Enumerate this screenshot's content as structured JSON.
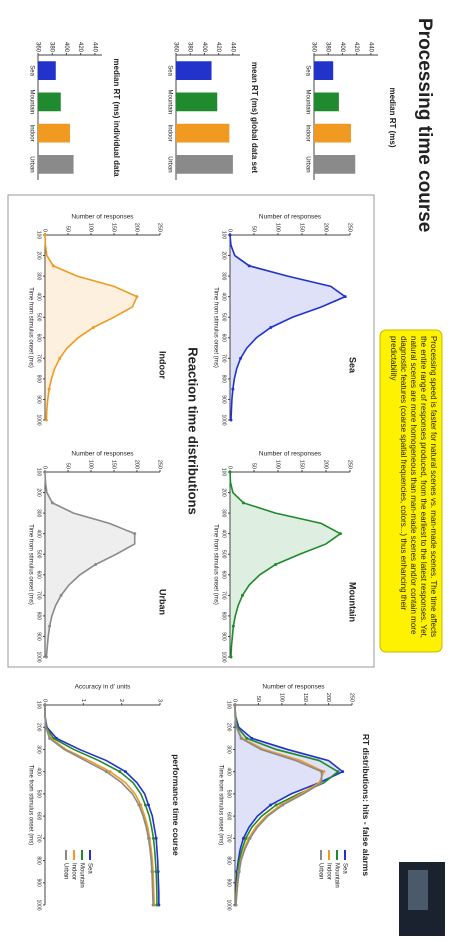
{
  "title": "Processing time course",
  "note": "Processing speed is faster for natural scenes vs. man-made scenes. The time affects the entire range of responses produced, from the earliest to the latest responses. Yet, natural scenes are more homogeneous than man-made scenes and/or contain more diagnostic features (coarse spatial frequencies, colors...) thus enhancing their predictability",
  "categories": [
    "Sea",
    "Mountain",
    "Indoor",
    "Urban"
  ],
  "colors": [
    "#2233cc",
    "#1f8a2e",
    "#f09a22",
    "#8a8a8a"
  ],
  "bar_charts": [
    {
      "title": "median RT (ms)",
      "values": [
        387,
        395,
        412,
        418
      ],
      "ylim": [
        360,
        450
      ],
      "yticks": [
        360,
        380,
        400,
        420,
        440
      ]
    },
    {
      "title": "mean RT (ms) global data set",
      "values": [
        410,
        418,
        435,
        440
      ],
      "ylim": [
        360,
        450
      ],
      "yticks": [
        360,
        380,
        400,
        420,
        440
      ]
    },
    {
      "title": "median RT (ms) individual data",
      "values": [
        385,
        392,
        405,
        410
      ],
      "ylim": [
        360,
        450
      ],
      "yticks": [
        360,
        380,
        400,
        420,
        440
      ]
    }
  ],
  "rt_section": {
    "title": "Reaction time distributions",
    "x_label": "Time from stimulus onset (ms)",
    "y_label": "Number of responses",
    "x": [
      100,
      150,
      200,
      250,
      300,
      350,
      400,
      450,
      500,
      550,
      600,
      650,
      700,
      750,
      800,
      850,
      900,
      950,
      1000
    ],
    "xlim": [
      100,
      1000
    ],
    "xticks": [
      100,
      200,
      300,
      400,
      500,
      600,
      700,
      800,
      900,
      1000
    ],
    "ylim": [
      0,
      250
    ],
    "yticks": [
      0,
      50,
      100,
      150,
      200,
      250
    ],
    "histograms": [
      {
        "name": "Sea",
        "values": [
          0,
          2,
          10,
          40,
          120,
          210,
          240,
          190,
          130,
          85,
          55,
          35,
          22,
          14,
          9,
          6,
          4,
          3,
          2
        ]
      },
      {
        "name": "Mountain",
        "values": [
          0,
          1,
          6,
          28,
          95,
          190,
          230,
          200,
          145,
          95,
          62,
          40,
          26,
          17,
          11,
          7,
          5,
          3,
          2
        ]
      },
      {
        "name": "Indoor",
        "values": [
          0,
          1,
          4,
          18,
          70,
          150,
          200,
          190,
          150,
          105,
          72,
          48,
          32,
          21,
          14,
          9,
          6,
          4,
          3
        ]
      },
      {
        "name": "Urban",
        "values": [
          0,
          1,
          4,
          16,
          62,
          140,
          195,
          195,
          155,
          110,
          76,
          52,
          35,
          23,
          15,
          10,
          7,
          5,
          3
        ]
      }
    ]
  },
  "hits_fa": {
    "title": "RT distributions: hits - false alarms",
    "y_label": "Number of responses",
    "x_label": "Time from stimulus onset (ms)",
    "ylim": [
      0,
      250
    ],
    "yticks": [
      0,
      50,
      100,
      150,
      200,
      250
    ],
    "series": [
      {
        "name": "Sea",
        "values": [
          0,
          1,
          8,
          36,
          112,
          200,
          230,
          180,
          120,
          76,
          48,
          30,
          18,
          11,
          7,
          4,
          3,
          2,
          1
        ]
      },
      {
        "name": "Mountain",
        "values": [
          0,
          1,
          5,
          25,
          88,
          180,
          220,
          190,
          136,
          88,
          57,
          36,
          23,
          15,
          9,
          6,
          4,
          2,
          1
        ]
      },
      {
        "name": "Indoor",
        "values": [
          0,
          0,
          3,
          15,
          62,
          140,
          190,
          180,
          140,
          98,
          66,
          44,
          29,
          19,
          12,
          8,
          5,
          3,
          2
        ]
      },
      {
        "name": "Urban",
        "values": [
          0,
          0,
          3,
          13,
          55,
          130,
          185,
          185,
          146,
          102,
          70,
          48,
          32,
          21,
          13,
          9,
          6,
          4,
          2
        ]
      }
    ]
  },
  "performance": {
    "title": "performance time course",
    "y_label": "Accuracy in d' units",
    "x_label": "Time from stimulus onset (ms)",
    "ylim": [
      0,
      3
    ],
    "yticks": [
      0,
      1,
      2,
      3
    ],
    "series": [
      {
        "name": "Sea",
        "values": [
          0,
          0,
          0.05,
          0.3,
          0.9,
          1.6,
          2.1,
          2.4,
          2.6,
          2.7,
          2.8,
          2.85,
          2.9,
          2.92,
          2.94,
          2.95,
          2.96,
          2.97,
          2.97
        ]
      },
      {
        "name": "Mountain",
        "values": [
          0,
          0,
          0.03,
          0.22,
          0.75,
          1.4,
          1.95,
          2.3,
          2.5,
          2.62,
          2.72,
          2.78,
          2.83,
          2.86,
          2.88,
          2.9,
          2.91,
          2.92,
          2.92
        ]
      },
      {
        "name": "Indoor",
        "values": [
          0,
          0,
          0.02,
          0.15,
          0.55,
          1.15,
          1.7,
          2.1,
          2.35,
          2.5,
          2.6,
          2.68,
          2.73,
          2.77,
          2.8,
          2.82,
          2.83,
          2.84,
          2.85
        ]
      },
      {
        "name": "Urban",
        "values": [
          0,
          0,
          0.02,
          0.12,
          0.5,
          1.05,
          1.6,
          2.0,
          2.28,
          2.45,
          2.56,
          2.64,
          2.7,
          2.74,
          2.77,
          2.79,
          2.8,
          2.81,
          2.82
        ]
      }
    ]
  }
}
